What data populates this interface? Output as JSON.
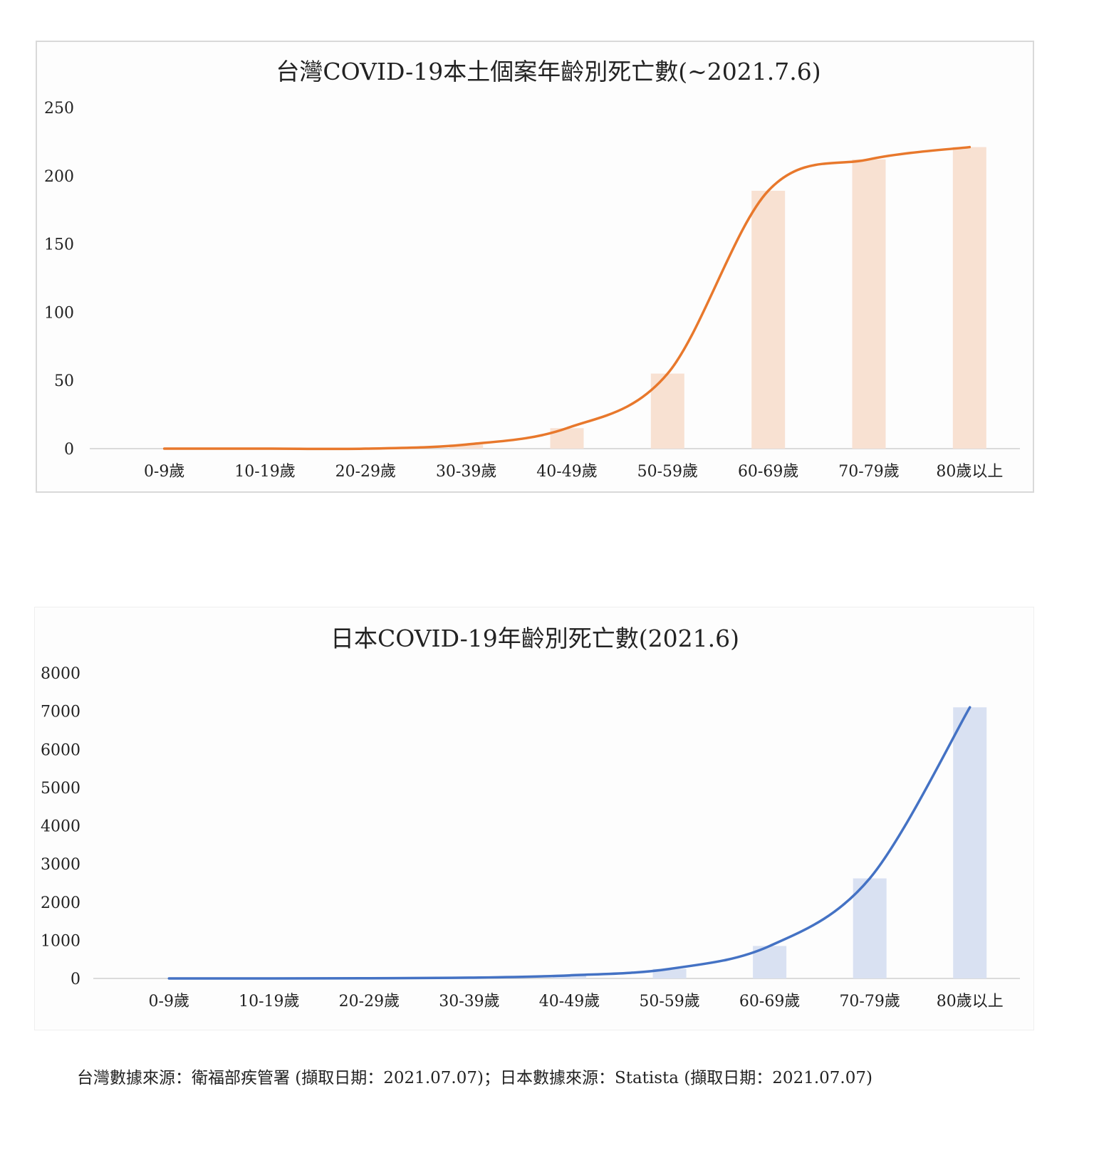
{
  "chart_data": [
    {
      "type": "bar",
      "title": "台灣COVID-19本土個案年齡別死亡數(~2021.7.6)",
      "categories": [
        "0-9歲",
        "10-19歲",
        "20-29歲",
        "30-39歲",
        "40-49歲",
        "50-59歲",
        "60-69歲",
        "70-79歲",
        "80歲以上"
      ],
      "values": [
        0,
        0,
        0,
        3,
        15,
        55,
        189,
        212,
        221
      ],
      "yticks": [
        "250",
        "200",
        "150",
        "100",
        "50",
        "0"
      ],
      "ylim": [
        0,
        250
      ],
      "grid": false,
      "legend": "none",
      "bar_color": "#f8e1d2",
      "line_color": "#e8782c",
      "overlay": "smoothed line through bar values"
    },
    {
      "type": "bar",
      "title": "日本COVID-19年齡別死亡數(2021.6)",
      "categories": [
        "0-9歲",
        "10-19歲",
        "20-29歲",
        "30-39歲",
        "40-49歲",
        "50-59歲",
        "60-69歲",
        "70-79歲",
        "80歲以上"
      ],
      "values": [
        0,
        0,
        5,
        20,
        80,
        250,
        850,
        2620,
        7100
      ],
      "yticks": [
        "8000",
        "7000",
        "6000",
        "5000",
        "4000",
        "3000",
        "2000",
        "1000",
        "0"
      ],
      "ylim": [
        0,
        8000
      ],
      "grid": false,
      "legend": "none",
      "bar_color": "#d9e1f2",
      "line_color": "#4472c4",
      "overlay": "smoothed line through bar values"
    }
  ],
  "source_note": "台灣數據來源：衛福部疾管署 (擷取日期：2021.07.07)；日本數據來源：Statista (擷取日期：2021.07.07)"
}
